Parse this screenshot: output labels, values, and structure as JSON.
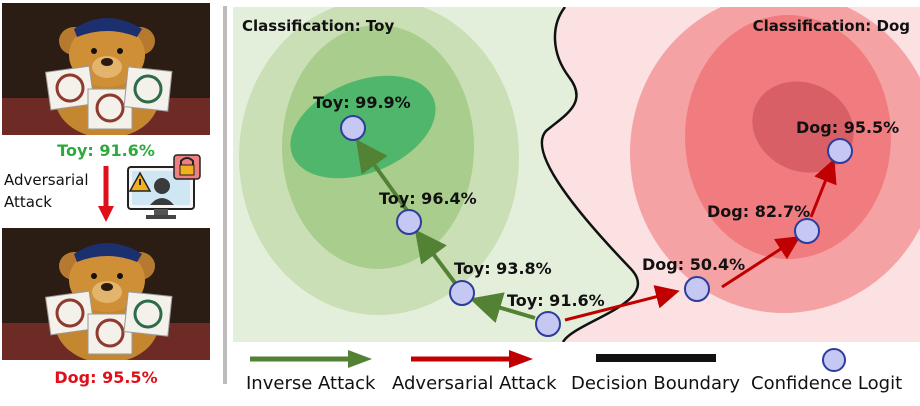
{
  "left_panel": {
    "top_caption": "Toy: 91.6%",
    "attack_label": "Adversarial Attack",
    "bottom_caption": "Dog: 95.5%"
  },
  "diagram": {
    "left_region_title": "Classification: Toy",
    "right_region_title": "Classification: Dog",
    "points": [
      {
        "label": "Toy: 99.9%",
        "class": "Toy",
        "confidence": 99.9
      },
      {
        "label": "Toy: 96.4%",
        "class": "Toy",
        "confidence": 96.4
      },
      {
        "label": "Toy: 93.8%",
        "class": "Toy",
        "confidence": 93.8
      },
      {
        "label": "Toy: 91.6%",
        "class": "Toy",
        "confidence": 91.6
      },
      {
        "label": "Dog: 50.4%",
        "class": "Dog",
        "confidence": 50.4
      },
      {
        "label": "Dog: 82.7%",
        "class": "Dog",
        "confidence": 82.7
      },
      {
        "label": "Dog: 95.5%",
        "class": "Dog",
        "confidence": 95.5
      }
    ]
  },
  "legend": {
    "inverse_attack": "Inverse Attack",
    "adversarial_attack": "Adversarial Attack",
    "decision_boundary": "Decision Boundary",
    "confidence_logit": "Confidence Logit"
  },
  "colors": {
    "toy_region": "#e4efdb",
    "dog_region": "#fbe1e2",
    "inverse_arrow": "#548235",
    "adversarial_arrow": "#c00000",
    "point_fill": "#c5c8f2",
    "point_stroke": "#2f3c9a",
    "toy_caption": "#2eaa3c",
    "dog_caption": "#e0101b"
  }
}
